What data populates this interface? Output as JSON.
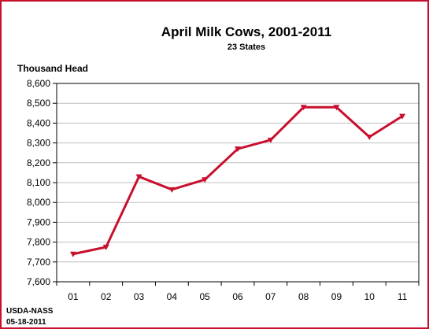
{
  "chart_data": {
    "type": "line",
    "title": "April Milk Cows, 2001-2011",
    "subtitle": "23 States",
    "ylabel": "Thousand Head",
    "xlabel": "",
    "categories": [
      "01",
      "02",
      "03",
      "04",
      "05",
      "06",
      "07",
      "08",
      "09",
      "10",
      "11"
    ],
    "series": [
      {
        "values": [
          7740,
          7775,
          8130,
          8065,
          8115,
          8270,
          8315,
          8480,
          8480,
          8330,
          8435
        ]
      }
    ],
    "ylim": [
      7600,
      8600
    ],
    "yticks": [
      "7,600",
      "7,700",
      "7,800",
      "7,900",
      "8,000",
      "8,100",
      "8,200",
      "8,300",
      "8,400",
      "8,500",
      "8,600"
    ],
    "grid": true,
    "line_color": "#c8102e",
    "gridline_color": "#bfbfbf",
    "legend": "none"
  },
  "footer": {
    "source": "USDA-NASS",
    "date": "05-18-2011"
  }
}
